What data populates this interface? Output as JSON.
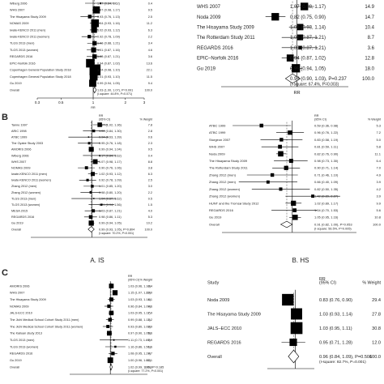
{
  "figure": {
    "panel_letters": [
      "B",
      "C"
    ]
  },
  "chart_data": [
    {
      "type": "forest",
      "id": "A1",
      "column_headers": {
        "estimate": "",
        "weight": ""
      },
      "xticks": [
        "0.3",
        "0.5",
        "1",
        "2",
        "3"
      ],
      "xlabel": "RR",
      "xlim": [
        0.3,
        3.0
      ],
      "rows": [
        {
          "label": "Wiberg 2006",
          "rr": 1.17,
          "lo": 0.84,
          "hi": 1.62,
          "ci": "1.17 (0.84, 1.62)",
          "weight": 0.4
        },
        {
          "label": "WHS 2007",
          "rr": 1.07,
          "lo": 0.98,
          "hi": 1.17,
          "ci": "1.07 (0.98, 1.17)",
          "weight": 9.5
        },
        {
          "label": "The Hisayama Study 2009",
          "rr": 0.93,
          "lo": 0.76,
          "hi": 1.13,
          "ci": "0.93 (0.76, 1.13)",
          "weight": 2.5
        },
        {
          "label": "NOMAS 2009",
          "rr": 1.04,
          "lo": 0.93,
          "hi": 1.16,
          "ci": "1.04 (0.93, 1.16)",
          "weight": 11.2
        },
        {
          "label": "Iwate-KENCO 2011 (men)",
          "rr": 1.02,
          "lo": 0.93,
          "hi": 1.12,
          "ci": "1.02 (0.93, 1.12)",
          "weight": 6.3
        },
        {
          "label": "Iwate-KENCO 2011 (women)",
          "rr": 0.92,
          "lo": 0.78,
          "hi": 1.09,
          "ci": "0.92 (0.78, 1.09)",
          "weight": 2.2
        },
        {
          "label": "TLGS 2013 (men)",
          "rr": 1.03,
          "lo": 0.88,
          "hi": 1.21,
          "ci": "1.03 (0.88, 1.21)",
          "weight": 3.4
        },
        {
          "label": "TLGS 2013 (women)",
          "rr": 1.01,
          "lo": 0.87,
          "hi": 1.16,
          "ci": "1.01 (0.87, 1.16)",
          "weight": 4.6
        },
        {
          "label": "REGARDS 2016",
          "rr": 1.03,
          "lo": 0.87,
          "hi": 1.21,
          "ci": "1.03 (0.87, 1.21)",
          "weight": 3.6
        },
        {
          "label": "EPIC-Norfolk 2016",
          "rr": 0.94,
          "lo": 0.87,
          "hi": 1.02,
          "ci": "0.94 (0.87, 1.02)",
          "weight": 13.6
        },
        {
          "label": "Copenhagen General Population Study 2018",
          "rr": 1.04,
          "lo": 0.98,
          "hi": 1.1,
          "ci": "1.04 (0.98, 1.10)",
          "weight": 22.1
        },
        {
          "label": "Copenhagen General Population Study 2018",
          "rr": 1.01,
          "lo": 0.93,
          "hi": 1.1,
          "ci": "1.01 (0.93, 1.10)",
          "weight": 11.5
        },
        {
          "label": "Gu 2019",
          "rr": 0.99,
          "lo": 0.94,
          "hi": 1.05,
          "ci": "0.99 (0.94, 1.05)",
          "weight": 9.4
        }
      ],
      "overall": {
        "label": "Overall",
        "rr": 1.03,
        "lo": 1.0,
        "hi": 1.07,
        "ci": "1.03 (1.00, 1.07)",
        "p": "P=0.091",
        "weight": 100.0,
        "stat": "(I-square: 44.8%, P=0.071)"
      }
    },
    {
      "type": "forest",
      "id": "A2",
      "column_headers": {
        "estimate": "",
        "weight": ""
      },
      "xticks": [],
      "xlabel": "RR",
      "xlim": [
        0.5,
        1.6
      ],
      "rows": [
        {
          "label": "WHS 2007",
          "rr": 1.07,
          "lo": 0.98,
          "hi": 1.17,
          "ci": "1.07 (0.98, 1.17)",
          "weight": 14.9
        },
        {
          "label": "Noda 2009",
          "rr": 0.82,
          "lo": 0.75,
          "hi": 0.9,
          "ci": "0.82 (0.75, 0.90)",
          "weight": 14.7
        },
        {
          "label": "The Hisayama Study 2009",
          "rr": 1.03,
          "lo": 0.93,
          "hi": 1.14,
          "ci": "1.03 (0.93, 1.14)",
          "weight": 10.4
        },
        {
          "label": "The Rotterdam Study 2011",
          "rr": 1.03,
          "lo": 0.87,
          "hi": 1.21,
          "ci": "1.03 (0.87, 1.21)",
          "weight": 8.7
        },
        {
          "label": "REGARDS 2016",
          "rr": 1.03,
          "lo": 0.87,
          "hi": 1.21,
          "ci": "1.03 (0.87, 1.21)",
          "weight": 3.6
        },
        {
          "label": "EPIC–Norfolk 2016",
          "rr": 0.94,
          "lo": 0.87,
          "hi": 1.02,
          "ci": "0.94 (0.87, 1.02)",
          "weight": 12.8
        },
        {
          "label": "Gu 2019",
          "rr": 0.99,
          "lo": 0.94,
          "hi": 1.05,
          "ci": "0.99 (0.94, 1.05)",
          "weight": 18.0
        }
      ],
      "overall": {
        "label": "",
        "rr": 0.96,
        "lo": 0.9,
        "hi": 1.03,
        "ci": "0.96 (0.90, 1.03)",
        "p": "P=0.237",
        "weight": 100.0,
        "stat": "(I-square: 67.4%, P=0.003)"
      }
    },
    {
      "type": "forest",
      "id": "B-IS",
      "caption": "A. IS",
      "column_headers": {
        "estimate": "RR\n(95% CI)",
        "weight": "% Weight"
      },
      "xticks": [],
      "xlabel": "",
      "xlim": [
        0.3,
        3.0
      ],
      "rows": [
        {
          "label": "Tanne 1997",
          "rr": 1.17,
          "lo": 1.02,
          "hi": 1.36,
          "ci": "1.17 (1.02, 1.36)",
          "weight": 7.8
        },
        {
          "label": "ARIC 1998",
          "rr": 1.04,
          "lo": 0.84,
          "hi": 1.3,
          "ci": "1.04 (0.84, 1.30)",
          "weight": 2.8
        },
        {
          "label": "ATBC 1999",
          "rr": 0.94,
          "lo": 0.63,
          "hi": 1.39,
          "ci": "0.94 (0.63, 1.39)",
          "weight": 0.6
        },
        {
          "label": "The Oyabe Study 2003",
          "rr": 0.95,
          "lo": 0.76,
          "hi": 1.18,
          "ci": "0.95 (0.76, 1.18)",
          "weight": 2.3
        },
        {
          "label": "AMORIS 2006",
          "rr": 0.99,
          "lo": 0.94,
          "hi": 1.04,
          "ci": "0.99 (0.94, 1.04)",
          "weight": 9.5
        },
        {
          "label": "Wiberg 2006",
          "rr": 1.17,
          "lo": 0.84,
          "hi": 1.62,
          "ci": "1.17 (0.84, 1.62)",
          "weight": 0.4
        },
        {
          "label": "WHS 2007",
          "rr": 1.07,
          "lo": 0.98,
          "hi": 1.17,
          "ci": "1.07 (0.98, 1.17)",
          "weight": 8.8
        },
        {
          "label": "NOMAS 2009",
          "rr": 0.9,
          "lo": 0.76,
          "hi": 1.06,
          "ci": "0.90 (0.76, 1.06)",
          "weight": 3.8
        },
        {
          "label": "Iwate-KENCO 2011 (men)",
          "rr": 1.02,
          "lo": 0.93,
          "hi": 1.12,
          "ci": "1.02 (0.93, 1.12)",
          "weight": 6.3
        },
        {
          "label": "Iwate-KENCO 2011 (women)",
          "rr": 0.92,
          "lo": 0.78,
          "hi": 1.09,
          "ci": "0.92 (0.78, 1.09)",
          "weight": 2.5
        },
        {
          "label": "Zhang 2012 (men)",
          "rr": 1.01,
          "lo": 0.85,
          "hi": 1.2,
          "ci": "1.01 (0.85, 1.20)",
          "weight": 3.0
        },
        {
          "label": "Zhang 2012 (women)",
          "rr": 0.98,
          "lo": 0.8,
          "hi": 1.2,
          "ci": "0.98 (0.80, 1.20)",
          "weight": 2.2
        },
        {
          "label": "TLGS 2013 (men)",
          "rr": 1.04,
          "lo": 0.67,
          "hi": 1.62,
          "ci": "1.04 (0.67, 1.62)",
          "weight": 0.5
        },
        {
          "label": "TLGS 2013 (women)",
          "rr": 1.21,
          "lo": 0.94,
          "hi": 1.56,
          "ci": "1.21 (0.94, 1.56)",
          "weight": 1.5
        },
        {
          "label": "MESA 2015",
          "rr": 1.03,
          "lo": 0.87,
          "hi": 1.21,
          "ci": "1.03 (0.87, 1.21)",
          "weight": 4.0
        },
        {
          "label": "REGARDS 2016",
          "rr": 0.98,
          "lo": 0.86,
          "hi": 1.11,
          "ci": "0.98 (0.86, 1.11)",
          "weight": 5.3
        },
        {
          "label": "Gu 2019",
          "rr": 0.99,
          "lo": 0.94,
          "hi": 1.05,
          "ci": "0.99 (0.94, 1.05)",
          "weight": 10.2
        }
      ],
      "overall": {
        "label": "Overall",
        "rr": 0.99,
        "lo": 0.93,
        "hi": 1.05,
        "ci": "0.99 (0.93, 1.05)",
        "p": "P=0.804",
        "weight": 100.0,
        "stat": "(I-square: 70.2%, P<0.001)"
      }
    },
    {
      "type": "forest",
      "id": "B-HS",
      "caption": "B. HS",
      "column_headers": {
        "estimate": "RR\n(95% CI)",
        "weight": "% Weight"
      },
      "xticks": [],
      "xlabel": "",
      "xlim": [
        0.3,
        3.0
      ],
      "rows": [
        {
          "label": "ATBC 1999",
          "rr": 0.59,
          "lo": 0.36,
          "hi": 0.98,
          "ci": "0.59 (0.36, 0.98)",
          "weight": 5.3
        },
        {
          "label": "ATBC 1999",
          "rr": 0.96,
          "lo": 0.76,
          "hi": 1.22,
          "ci": "0.96 (0.76, 1.22)",
          "weight": 7.2
        },
        {
          "label": "Sturgeon 2007",
          "rr": 0.83,
          "lo": 0.58,
          "hi": 1.19,
          "ci": "0.83 (0.58, 1.19)",
          "weight": 5.0
        },
        {
          "label": "WHS 2007",
          "rr": 0.81,
          "lo": 0.59,
          "hi": 1.11,
          "ci": "0.81 (0.59, 1.11)",
          "weight": 5.8
        },
        {
          "label": "Noda 2009",
          "rr": 0.82,
          "lo": 0.76,
          "hi": 0.9,
          "ci": "0.82 (0.76, 0.90)",
          "weight": 11.1
        },
        {
          "label": "The Hisayama Study 2009",
          "rr": 0.98,
          "lo": 0.73,
          "hi": 1.3,
          "ci": "0.98 (0.73, 1.30)",
          "weight": 6.4
        },
        {
          "label": "The Rotterdam Study 2011",
          "rr": 0.9,
          "lo": 0.71,
          "hi": 1.14,
          "ci": "0.90 (0.71, 1.14)",
          "weight": 7.0
        },
        {
          "label": "Zhang 2012 (men)",
          "rr": 0.71,
          "lo": 0.46,
          "hi": 1.1,
          "ci": "0.71 (0.46, 1.10)",
          "weight": 4.9
        },
        {
          "label": "Zhang 2012 (men)",
          "rr": 0.66,
          "lo": 0.4,
          "hi": 1.09,
          "ci": "0.66 (0.40, 1.09)",
          "weight": 3.9
        },
        {
          "label": "Zhang 2012 (women)",
          "rr": 0.82,
          "lo": 0.5,
          "hi": 1.35,
          "ci": "0.82 (0.50, 1.35)",
          "weight": 4.2
        },
        {
          "label": "Zhang 2012 (women)",
          "rr": 1.42,
          "lo": 0.89,
          "hi": 2.27,
          "ci": "1.42 (0.89, 2.27)",
          "weight": 3.9
        },
        {
          "label": "HUNT and the Tromsø Study 2012",
          "rr": 1.02,
          "lo": 0.89,
          "hi": 1.17,
          "ci": "1.02 (0.89, 1.17)",
          "weight": 9.9
        },
        {
          "label": "REGARDS 2016",
          "rr": 1.04,
          "lo": 0.7,
          "hi": 1.53,
          "ci": "1.04 (0.70, 1.53)",
          "weight": 5.6
        },
        {
          "label": "Gu 2019",
          "rr": 1.05,
          "lo": 0.95,
          "hi": 1.16,
          "ci": "1.05 (0.95, 1.16)",
          "weight": 10.8
        }
      ],
      "overall": {
        "label": "Overall",
        "rr": 0.91,
        "lo": 0.82,
        "hi": 1.0,
        "ci": "0.91 (0.82, 1.00)",
        "p": "P=0.053",
        "weight": 100.0,
        "stat": "(I-square: 56.5%, P=0.005)"
      }
    },
    {
      "type": "forest",
      "id": "C1",
      "column_headers": {
        "study": "",
        "estimate": "RR\n(95% CI)",
        "weight": "% Weight"
      },
      "xticks": [],
      "xlabel": "",
      "xlim": [
        0.3,
        3.0
      ],
      "rows": [
        {
          "label": "AMORIS 2006",
          "rr": 1.03,
          "lo": 0.96,
          "hi": 1.1,
          "ci": "1.03 (0.96, 1.10)",
          "weight": 8.4
        },
        {
          "label": "WHS 2007",
          "rr": 1.15,
          "lo": 1.07,
          "hi": 1.23,
          "ci": "1.15 (1.07, 1.23)",
          "weight": 10.0
        },
        {
          "label": "The Hisayama Study 2009",
          "rr": 1.03,
          "lo": 0.93,
          "hi": 1.14,
          "ci": "1.03 (0.93, 1.14)",
          "weight": 6.1
        },
        {
          "label": "NOMAS 2009",
          "rr": 0.96,
          "lo": 0.84,
          "hi": 1.09,
          "ci": "0.96 (0.84, 1.09)",
          "weight": 4.6
        },
        {
          "label": "JALS-ECC 2010",
          "rr": 1.03,
          "lo": 0.95,
          "hi": 1.11,
          "ci": "1.03 (0.95, 1.11)",
          "weight": 7.9
        },
        {
          "label": "The Jichi Medical School Cohort Study 2011 (men)",
          "rr": 0.99,
          "lo": 0.88,
          "hi": 1.11,
          "ci": "0.99 (0.88, 1.11)",
          "weight": 5.2
        },
        {
          "label": "The Jichi Medical School Cohort Study 2011 (women)",
          "rr": 0.93,
          "lo": 0.8,
          "hi": 1.08,
          "ci": "0.93 (0.80, 1.08)",
          "weight": 3.9
        },
        {
          "label": "The Kailuan study 2013",
          "rr": 0.97,
          "lo": 0.9,
          "hi": 1.05,
          "ci": "0.97 (0.90, 1.05)",
          "weight": 8.6
        },
        {
          "label": "TLGS 2013 (men)",
          "rr": 1.11,
          "lo": 0.73,
          "hi": 1.69,
          "ci": "1.11 (0.73, 1.69)",
          "weight": 0.9
        },
        {
          "label": "TLGS 2013 (women)",
          "rr": 1.16,
          "lo": 0.86,
          "hi": 1.56,
          "ci": "1.16 (0.86, 1.56)",
          "weight": 1.6
        },
        {
          "label": "REGARDS 2016",
          "rr": 1.08,
          "lo": 0.95,
          "hi": 1.23,
          "ci": "1.08 (0.95, 1.23)",
          "weight": 4.7
        },
        {
          "label": "Gu 2019",
          "rr": 1.0,
          "lo": 0.96,
          "hi": 1.05,
          "ci": "1.00 (0.96, 1.05)",
          "weight": 12.1
        }
      ],
      "overall": {
        "label": "Overall",
        "rr": 1.02,
        "lo": 0.99,
        "hi": 1.06,
        "ci": "1.02 (0.99, 1.06)",
        "p": "P=0.185",
        "weight": 100.0,
        "stat": "(I-square: 77.2%, P<0.001)"
      }
    },
    {
      "type": "forest",
      "id": "C2",
      "column_headers": {
        "study": "Study",
        "estimate": "RR\n(95% CI)",
        "weight": "% Weight"
      },
      "xticks": [],
      "xlabel": "",
      "xlim": [
        0.5,
        1.6
      ],
      "rows": [
        {
          "label": "Noda 2009",
          "rr": 0.83,
          "lo": 0.76,
          "hi": 0.9,
          "ci": "0.83 (0.76, 0.90)",
          "weight": 29.4
        },
        {
          "label": "The Hisayama Study 2009",
          "rr": 1.03,
          "lo": 0.93,
          "hi": 1.14,
          "ci": "1.03 (0.93, 1.14)",
          "weight": 27.8
        },
        {
          "label": "JALS–ECC 2010",
          "rr": 1.03,
          "lo": 0.95,
          "hi": 1.11,
          "ci": "1.03 (0.95, 1.11)",
          "weight": 30.8
        },
        {
          "label": "REGARDS 2016",
          "rr": 0.95,
          "lo": 0.71,
          "hi": 1.28,
          "ci": "0.95 (0.71, 1.28)",
          "weight": 12.0
        }
      ],
      "overall": {
        "label": "Overall",
        "rr": 0.96,
        "lo": 0.84,
        "hi": 1.09,
        "ci": "0.96 (0.84, 1.09)",
        "p": "P=0.506",
        "weight": 100.0,
        "stat": "(I-square: 82.7%, P=0.001)"
      }
    }
  ]
}
